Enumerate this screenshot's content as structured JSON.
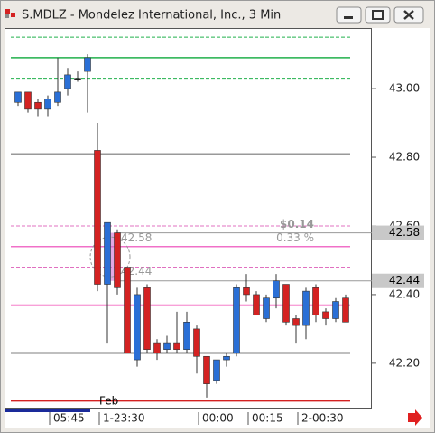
{
  "window": {
    "title": "S.MDLZ - Mondelez International, Inc., 3 Min"
  },
  "chart_data": {
    "type": "candlestick",
    "categories": [
      null,
      null,
      null,
      "05:45",
      null,
      null,
      null,
      null,
      "1-23:30",
      null,
      null,
      null,
      null,
      null,
      null,
      null,
      null,
      null,
      "00:00",
      null,
      null,
      null,
      null,
      "00:15",
      null,
      null,
      null,
      null,
      "2-00:30",
      null,
      null,
      null,
      null,
      null
    ],
    "open": [
      42.96,
      42.99,
      42.96,
      42.94,
      42.96,
      43.0,
      43.03,
      43.05,
      42.82,
      42.43,
      42.58,
      42.48,
      42.21,
      42.42,
      42.26,
      42.24,
      42.26,
      42.24,
      42.3,
      42.22,
      42.15,
      42.21,
      42.23,
      42.42,
      42.4,
      42.33,
      42.39,
      42.43,
      42.33,
      42.31,
      42.42,
      42.35,
      42.33,
      42.39
    ],
    "high": [
      42.99,
      42.99,
      42.97,
      42.98,
      43.09,
      43.06,
      43.05,
      43.1,
      42.9,
      42.61,
      42.59,
      42.48,
      42.42,
      42.43,
      42.27,
      42.28,
      42.35,
      42.35,
      42.31,
      42.22,
      42.21,
      42.23,
      42.43,
      42.46,
      42.41,
      42.4,
      42.46,
      42.43,
      42.34,
      42.42,
      42.43,
      42.36,
      42.39,
      42.4
    ],
    "low": [
      42.95,
      42.93,
      42.92,
      42.92,
      42.95,
      42.98,
      43.02,
      42.93,
      42.41,
      42.26,
      42.4,
      42.23,
      42.19,
      42.23,
      42.21,
      42.23,
      42.23,
      42.23,
      42.17,
      42.1,
      42.14,
      42.19,
      42.22,
      42.38,
      42.34,
      42.32,
      42.36,
      42.31,
      42.26,
      42.27,
      42.32,
      42.31,
      42.32,
      42.32
    ],
    "close": [
      42.99,
      42.94,
      42.94,
      42.97,
      42.99,
      43.04,
      43.03,
      43.09,
      42.43,
      42.61,
      42.42,
      42.23,
      42.4,
      42.24,
      42.23,
      42.26,
      42.24,
      42.32,
      42.22,
      42.14,
      42.21,
      42.22,
      42.42,
      42.4,
      42.34,
      42.39,
      42.44,
      42.32,
      42.31,
      42.41,
      42.34,
      42.33,
      42.38,
      42.32
    ],
    "up_color": "#2a6fd6",
    "down_color": "#d42222",
    "flat_color": "#000000",
    "ylim": [
      42.068,
      43.174
    ],
    "yticks": [
      {
        "value": 43.0,
        "label": "43.00"
      },
      {
        "value": 42.8,
        "label": "42.80"
      },
      {
        "value": 42.6,
        "label": "42.60"
      },
      {
        "value": 42.4,
        "label": "42.40"
      },
      {
        "value": 42.2,
        "label": "42.20"
      }
    ],
    "levels": [
      {
        "value": 43.15,
        "color": "#22b14c",
        "dashed": true
      },
      {
        "value": 43.09,
        "color": "#22b14c",
        "dashed": false
      },
      {
        "value": 43.03,
        "color": "#22b14c",
        "dashed": true
      },
      {
        "value": 42.81,
        "color": "#999999",
        "dashed": false
      },
      {
        "value": 42.6,
        "color": "#e070c0",
        "dashed": true
      },
      {
        "value": 42.54,
        "color": "#f070c8",
        "dashed": false
      },
      {
        "value": 42.48,
        "color": "#e070c0",
        "dashed": true
      },
      {
        "value": 42.37,
        "color": "#f8a0d8",
        "dashed": false
      },
      {
        "value": 42.23,
        "color": "#000000",
        "dashed": false
      },
      {
        "value": 42.09,
        "color": "#d42222",
        "dashed": false
      }
    ],
    "price_labels": [
      {
        "value": 42.58,
        "label": "42.58"
      },
      {
        "value": 42.44,
        "label": "42.44"
      }
    ],
    "annotations": {
      "change": "$0.14",
      "percent": "0.33 %",
      "month": "Feb"
    }
  }
}
